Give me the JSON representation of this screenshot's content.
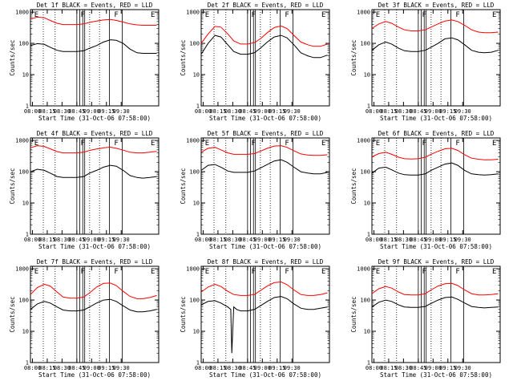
{
  "figure": {
    "bg": "#ffffff",
    "fg": "#000000"
  },
  "chart_data": [
    {
      "type": "line",
      "panel": "1f",
      "title": "Det 1f BLACK = Events, RED = LLD",
      "xlabel": "Start Time (31-Oct-06 07:58:00)",
      "ylabel": "Counts/sec",
      "y_scale": "log",
      "ylim": [
        1,
        1200
      ],
      "y_tick_labels": [
        "1",
        "10",
        "100",
        "1000"
      ],
      "x_tick_labels": [
        "08:00",
        "08:15",
        "08:30",
        "08:45",
        "09:00",
        "09:15",
        "09:30"
      ],
      "markers": [
        "E",
        "F",
        "F",
        "E"
      ],
      "series": [
        {
          "color": "#ff0000",
          "x": [
            0,
            7,
            14,
            20,
            27,
            33,
            40,
            47,
            54,
            60,
            67,
            74,
            81,
            87,
            94,
            101,
            108,
            114,
            121,
            128
          ],
          "y": [
            600,
            690,
            660,
            540,
            440,
            400,
            400,
            400,
            420,
            470,
            520,
            560,
            580,
            540,
            480,
            420,
            390,
            380,
            380,
            380
          ]
        },
        {
          "color": "#000000",
          "x": [
            0,
            7,
            14,
            20,
            27,
            33,
            40,
            47,
            54,
            60,
            67,
            74,
            81,
            87,
            94,
            101,
            108,
            114,
            121,
            128
          ],
          "y": [
            85,
            98,
            93,
            75,
            60,
            55,
            55,
            55,
            58,
            70,
            85,
            110,
            130,
            125,
            100,
            65,
            50,
            48,
            48,
            48
          ]
        }
      ]
    },
    {
      "type": "line",
      "panel": "2f",
      "title": "Det 2f BLACK = Events, RED = LLD",
      "xlabel": "Start Time (31-Oct-06 07:58:00)",
      "ylabel": "Counts/sec",
      "y_scale": "log",
      "ylim": [
        1,
        1200
      ],
      "y_tick_labels": [
        "1",
        "10",
        "100",
        "1000"
      ],
      "x_tick_labels": [
        "08:00",
        "08:15",
        "08:30",
        "08:45",
        "09:00",
        "09:15",
        "09:30"
      ],
      "markers": [
        "E",
        "F",
        "F",
        "E"
      ],
      "series": [
        {
          "color": "#ff0000",
          "x": [
            0,
            7,
            14,
            20,
            27,
            33,
            40,
            47,
            54,
            60,
            67,
            74,
            81,
            87,
            94,
            101,
            108,
            114,
            121,
            128
          ],
          "y": [
            100,
            200,
            350,
            330,
            200,
            120,
            95,
            95,
            105,
            140,
            220,
            320,
            360,
            300,
            180,
            110,
            90,
            80,
            80,
            95
          ]
        },
        {
          "color": "#000000",
          "x": [
            0,
            7,
            14,
            20,
            27,
            33,
            40,
            47,
            54,
            60,
            67,
            74,
            81,
            87,
            94,
            101,
            108,
            114,
            121,
            128
          ],
          "y": [
            45,
            100,
            180,
            160,
            90,
            55,
            45,
            45,
            50,
            70,
            110,
            160,
            180,
            150,
            90,
            50,
            40,
            35,
            35,
            42
          ]
        }
      ]
    },
    {
      "type": "line",
      "panel": "3f",
      "title": "Det 3f BLACK = Events, RED = LLD",
      "xlabel": "Start Time (31-Oct-06 07:58:00)",
      "ylabel": "Counts/sec",
      "y_scale": "log",
      "ylim": [
        1,
        1200
      ],
      "y_tick_labels": [
        "1",
        "10",
        "100",
        "1000"
      ],
      "x_tick_labels": [
        "08:00",
        "08:15",
        "08:30",
        "08:45",
        "09:00",
        "09:15",
        "09:30"
      ],
      "markers": [
        "E",
        "F",
        "F",
        "E"
      ],
      "series": [
        {
          "color": "#ff0000",
          "x": [
            0,
            7,
            14,
            20,
            27,
            33,
            40,
            47,
            54,
            60,
            67,
            74,
            81,
            87,
            94,
            101,
            108,
            114,
            121,
            128
          ],
          "y": [
            300,
            420,
            500,
            440,
            330,
            270,
            250,
            250,
            270,
            330,
            420,
            520,
            560,
            500,
            380,
            270,
            230,
            220,
            220,
            230
          ]
        },
        {
          "color": "#000000",
          "x": [
            0,
            7,
            14,
            20,
            27,
            33,
            40,
            47,
            54,
            60,
            67,
            74,
            81,
            87,
            94,
            101,
            108,
            114,
            121,
            128
          ],
          "y": [
            60,
            90,
            110,
            95,
            70,
            58,
            55,
            55,
            60,
            75,
            100,
            140,
            150,
            130,
            90,
            60,
            52,
            50,
            52,
            60
          ]
        }
      ]
    },
    {
      "type": "line",
      "panel": "4f",
      "title": "Det 4f BLACK = Events, RED = LLD",
      "xlabel": "Start Time (31-Oct-06 07:58:00)",
      "ylabel": "Counts/sec",
      "y_scale": "log",
      "ylim": [
        1,
        1200
      ],
      "y_tick_labels": [
        "1",
        "10",
        "100",
        "1000"
      ],
      "x_tick_labels": [
        "08:00",
        "08:15",
        "08:30",
        "08:45",
        "09:00",
        "09:15",
        "09:30"
      ],
      "markers": [
        "E",
        "F",
        "F",
        "E"
      ],
      "series": [
        {
          "color": "#ff0000",
          "x": [
            0,
            7,
            14,
            20,
            27,
            33,
            40,
            47,
            54,
            60,
            67,
            74,
            81,
            87,
            94,
            101,
            108,
            114,
            121,
            128
          ],
          "y": [
            580,
            680,
            640,
            540,
            440,
            400,
            400,
            400,
            420,
            480,
            530,
            580,
            610,
            560,
            490,
            420,
            400,
            400,
            420,
            450
          ]
        },
        {
          "color": "#000000",
          "x": [
            0,
            7,
            14,
            20,
            27,
            33,
            40,
            47,
            54,
            60,
            67,
            74,
            81,
            87,
            94,
            101,
            108,
            114,
            121,
            128
          ],
          "y": [
            100,
            120,
            110,
            90,
            70,
            65,
            65,
            65,
            70,
            90,
            110,
            140,
            160,
            150,
            110,
            75,
            65,
            62,
            65,
            70
          ]
        }
      ]
    },
    {
      "type": "line",
      "panel": "5f",
      "title": "Det 5f BLACK = Events, RED = LLD",
      "xlabel": "Start Time (31-Oct-06 07:58:00)",
      "ylabel": "Counts/sec",
      "y_scale": "log",
      "ylim": [
        1,
        1200
      ],
      "y_tick_labels": [
        "1",
        "10",
        "100",
        "1000"
      ],
      "x_tick_labels": [
        "08:00",
        "08:15",
        "08:30",
        "08:45",
        "09:00",
        "09:15",
        "09:30"
      ],
      "markers": [
        "E",
        "F",
        "F",
        "E"
      ],
      "series": [
        {
          "color": "#ff0000",
          "x": [
            0,
            7,
            14,
            20,
            27,
            33,
            40,
            47,
            54,
            60,
            67,
            74,
            81,
            87,
            94,
            101,
            108,
            114,
            121,
            128
          ],
          "y": [
            420,
            560,
            600,
            500,
            400,
            360,
            360,
            360,
            380,
            450,
            560,
            660,
            680,
            600,
            470,
            370,
            340,
            330,
            330,
            350
          ]
        },
        {
          "color": "#000000",
          "x": [
            0,
            7,
            14,
            20,
            27,
            33,
            40,
            47,
            54,
            60,
            67,
            74,
            81,
            87,
            94,
            101,
            108,
            114,
            121,
            128
          ],
          "y": [
            110,
            160,
            170,
            140,
            105,
            95,
            95,
            95,
            105,
            130,
            170,
            220,
            240,
            200,
            140,
            100,
            90,
            85,
            85,
            95
          ]
        }
      ]
    },
    {
      "type": "line",
      "panel": "6f",
      "title": "Det 6f BLACK = Events, RED = LLD",
      "xlabel": "Start Time (31-Oct-06 07:58:00)",
      "ylabel": "Counts/sec",
      "y_scale": "log",
      "ylim": [
        1,
        1200
      ],
      "y_tick_labels": [
        "1",
        "10",
        "100",
        "1000"
      ],
      "x_tick_labels": [
        "08:00",
        "08:15",
        "08:30",
        "08:45",
        "09:00",
        "09:15",
        "09:30"
      ],
      "markers": [
        "E",
        "F",
        "F",
        "E"
      ],
      "series": [
        {
          "color": "#ff0000",
          "x": [
            0,
            7,
            14,
            20,
            27,
            33,
            40,
            47,
            54,
            60,
            67,
            74,
            81,
            87,
            94,
            101,
            108,
            114,
            121,
            128
          ],
          "y": [
            300,
            380,
            420,
            360,
            290,
            260,
            255,
            260,
            290,
            360,
            450,
            540,
            560,
            480,
            350,
            270,
            250,
            240,
            240,
            250
          ]
        },
        {
          "color": "#000000",
          "x": [
            0,
            7,
            14,
            20,
            27,
            33,
            40,
            47,
            54,
            60,
            67,
            74,
            81,
            87,
            94,
            101,
            108,
            114,
            121,
            128
          ],
          "y": [
            90,
            130,
            140,
            115,
            90,
            80,
            78,
            78,
            85,
            110,
            140,
            175,
            190,
            160,
            110,
            85,
            80,
            78,
            80,
            85
          ]
        }
      ]
    },
    {
      "type": "line",
      "panel": "7f",
      "title": "Det 7f BLACK = Events, RED = LLD",
      "xlabel": "Start Time (31-Oct-06 07:58:00)",
      "ylabel": "Counts/sec",
      "y_scale": "log",
      "ylim": [
        1,
        1200
      ],
      "y_tick_labels": [
        "1",
        "10",
        "100",
        "1000"
      ],
      "x_tick_labels": [
        "08:00",
        "08:15",
        "08:30",
        "08:45",
        "09:00",
        "09:15",
        "09:30"
      ],
      "markers": [
        "E",
        "F",
        "F",
        "E"
      ],
      "series": [
        {
          "color": "#ff0000",
          "x": [
            0,
            7,
            14,
            20,
            27,
            33,
            40,
            47,
            54,
            60,
            67,
            74,
            81,
            87,
            94,
            101,
            108,
            114,
            121,
            128
          ],
          "y": [
            150,
            250,
            320,
            280,
            180,
            125,
            115,
            115,
            125,
            170,
            260,
            340,
            350,
            290,
            190,
            130,
            110,
            110,
            120,
            140
          ]
        },
        {
          "color": "#000000",
          "x": [
            0,
            7,
            14,
            20,
            27,
            33,
            40,
            47,
            54,
            60,
            67,
            74,
            81,
            87,
            94,
            101,
            108,
            114,
            121,
            128
          ],
          "y": [
            50,
            75,
            90,
            80,
            60,
            48,
            45,
            45,
            48,
            60,
            80,
            100,
            105,
            90,
            65,
            48,
            42,
            42,
            45,
            50
          ]
        }
      ]
    },
    {
      "type": "line",
      "panel": "8f",
      "title": "Det 8f BLACK = Events, RED = LLD",
      "xlabel": "Start Time (31-Oct-06 07:58:00)",
      "ylabel": "Counts/sec",
      "y_scale": "log",
      "ylim": [
        1,
        1200
      ],
      "y_tick_labels": [
        "1",
        "10",
        "100",
        "1000"
      ],
      "x_tick_labels": [
        "08:00",
        "08:15",
        "08:30",
        "08:45",
        "09:00",
        "09:15",
        "09:30"
      ],
      "markers": [
        "E",
        "F",
        "F",
        "E"
      ],
      "series": [
        {
          "color": "#ff0000",
          "x": [
            0,
            7,
            14,
            20,
            27,
            33,
            40,
            47,
            54,
            60,
            67,
            74,
            81,
            87,
            94,
            101,
            108,
            114,
            121,
            128
          ],
          "y": [
            180,
            260,
            320,
            270,
            190,
            150,
            140,
            140,
            150,
            200,
            280,
            360,
            380,
            310,
            210,
            150,
            140,
            140,
            150,
            170
          ]
        },
        {
          "color": "#000000",
          "x": [
            0,
            7,
            14,
            20,
            27,
            30,
            31,
            33,
            36,
            40,
            47,
            54,
            60,
            67,
            74,
            81,
            87,
            94,
            101,
            108,
            114,
            121,
            128
          ],
          "y": [
            70,
            90,
            95,
            80,
            60,
            50,
            2,
            60,
            50,
            45,
            45,
            50,
            65,
            90,
            120,
            130,
            110,
            75,
            55,
            50,
            50,
            55,
            60
          ]
        }
      ]
    },
    {
      "type": "line",
      "panel": "9f",
      "title": "Det 9f BLACK = Events, RED = LLD",
      "xlabel": "Start Time (31-Oct-06 07:58:00)",
      "ylabel": "Counts/sec",
      "y_scale": "log",
      "ylim": [
        1,
        1200
      ],
      "y_tick_labels": [
        "1",
        "10",
        "100",
        "1000"
      ],
      "x_tick_labels": [
        "08:00",
        "08:15",
        "08:30",
        "08:45",
        "09:00",
        "09:15",
        "09:30"
      ],
      "markers": [
        "E",
        "F",
        "F",
        "E"
      ],
      "series": [
        {
          "color": "#ff0000",
          "x": [
            0,
            7,
            14,
            20,
            27,
            33,
            40,
            47,
            54,
            60,
            67,
            74,
            81,
            87,
            94,
            101,
            108,
            114,
            121,
            128
          ],
          "y": [
            160,
            230,
            270,
            240,
            180,
            150,
            145,
            145,
            160,
            210,
            280,
            330,
            340,
            290,
            210,
            160,
            145,
            145,
            150,
            160
          ]
        },
        {
          "color": "#000000",
          "x": [
            0,
            7,
            14,
            20,
            27,
            33,
            40,
            47,
            54,
            60,
            67,
            74,
            81,
            87,
            94,
            101,
            108,
            114,
            121,
            128
          ],
          "y": [
            60,
            85,
            100,
            90,
            70,
            60,
            58,
            58,
            62,
            78,
            100,
            120,
            125,
            105,
            80,
            62,
            58,
            56,
            58,
            60
          ]
        }
      ]
    }
  ]
}
